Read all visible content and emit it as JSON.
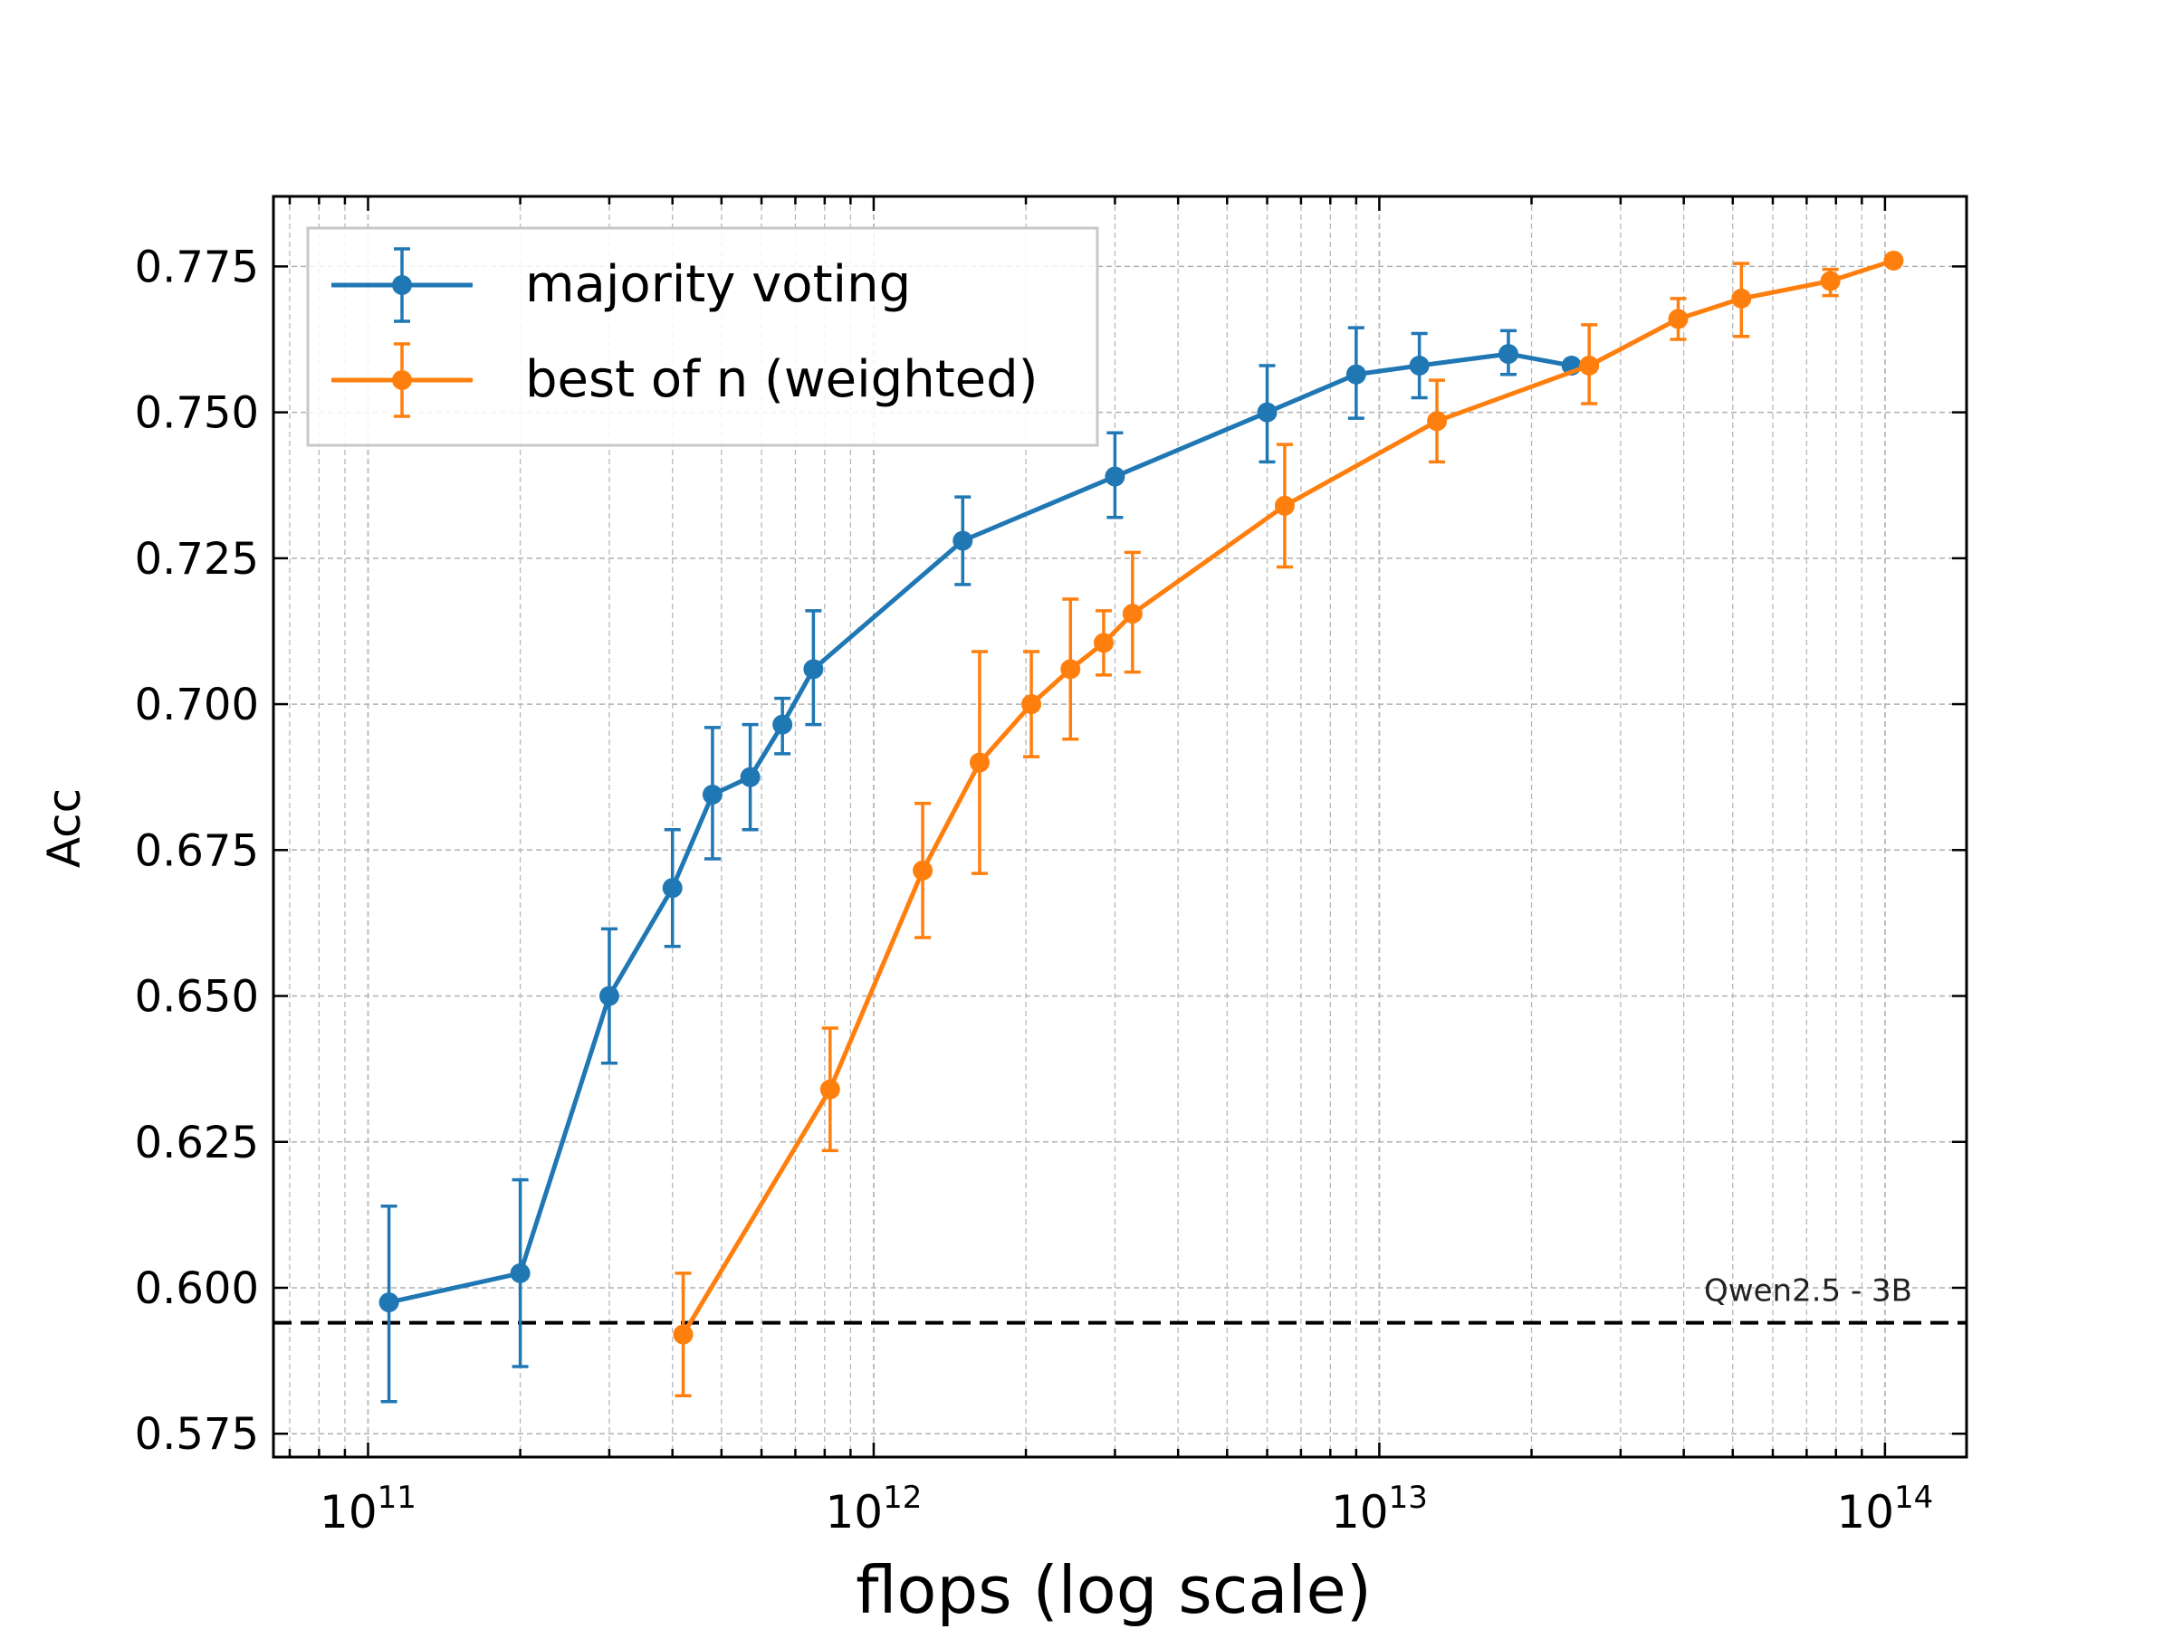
{
  "chart_data": {
    "type": "line",
    "title": "",
    "xlabel": "flops (log scale)",
    "ylabel": "Acc",
    "xscale": "log",
    "xlim": [
      65000000000.0,
      145000000000000.0
    ],
    "ylim": [
      0.571,
      0.787
    ],
    "x_ticks": [
      {
        "value": 100000000000.0,
        "base": "10",
        "exp": "11"
      },
      {
        "value": 1000000000000.0,
        "base": "10",
        "exp": "12"
      },
      {
        "value": 10000000000000.0,
        "base": "10",
        "exp": "13"
      },
      {
        "value": 100000000000000.0,
        "base": "10",
        "exp": "14"
      }
    ],
    "y_ticks": [
      "0.575",
      "0.600",
      "0.625",
      "0.650",
      "0.675",
      "0.700",
      "0.725",
      "0.750",
      "0.775"
    ],
    "grid": true,
    "legend_position": "top-left",
    "series": [
      {
        "name": "majority voting",
        "color": "#1f77b4",
        "points": [
          {
            "x": 110000000000.0,
            "y": 0.5975,
            "err_lo": 0.5805,
            "err_hi": 0.614
          },
          {
            "x": 200000000000.0,
            "y": 0.6025,
            "err_lo": 0.5865,
            "err_hi": 0.6185
          },
          {
            "x": 300000000000.0,
            "y": 0.65,
            "err_lo": 0.6385,
            "err_hi": 0.6615
          },
          {
            "x": 400000000000.0,
            "y": 0.6685,
            "err_lo": 0.6585,
            "err_hi": 0.6785
          },
          {
            "x": 480000000000.0,
            "y": 0.6845,
            "err_lo": 0.6735,
            "err_hi": 0.696
          },
          {
            "x": 570000000000.0,
            "y": 0.6875,
            "err_lo": 0.6785,
            "err_hi": 0.6965
          },
          {
            "x": 660000000000.0,
            "y": 0.6965,
            "err_lo": 0.6915,
            "err_hi": 0.701
          },
          {
            "x": 760000000000.0,
            "y": 0.706,
            "err_lo": 0.6965,
            "err_hi": 0.716
          },
          {
            "x": 1500000000000.0,
            "y": 0.728,
            "err_lo": 0.7205,
            "err_hi": 0.7355
          },
          {
            "x": 3000000000000.0,
            "y": 0.739,
            "err_lo": 0.732,
            "err_hi": 0.7465
          },
          {
            "x": 6000000000000.0,
            "y": 0.75,
            "err_lo": 0.7415,
            "err_hi": 0.758
          },
          {
            "x": 9000000000000.0,
            "y": 0.7565,
            "err_lo": 0.749,
            "err_hi": 0.7645
          },
          {
            "x": 12000000000000.0,
            "y": 0.758,
            "err_lo": 0.7525,
            "err_hi": 0.7635
          },
          {
            "x": 18000000000000.0,
            "y": 0.76,
            "err_lo": 0.7565,
            "err_hi": 0.764
          },
          {
            "x": 24000000000000.0,
            "y": 0.758,
            "err_lo": 0.758,
            "err_hi": 0.758
          }
        ]
      },
      {
        "name": "best of n (weighted)",
        "color": "#ff7f0e",
        "points": [
          {
            "x": 420000000000.0,
            "y": 0.592,
            "err_lo": 0.5815,
            "err_hi": 0.6025
          },
          {
            "x": 820000000000.0,
            "y": 0.634,
            "err_lo": 0.6235,
            "err_hi": 0.6445
          },
          {
            "x": 1250000000000.0,
            "y": 0.6715,
            "err_lo": 0.66,
            "err_hi": 0.683
          },
          {
            "x": 1620000000000.0,
            "y": 0.69,
            "err_lo": 0.671,
            "err_hi": 0.709
          },
          {
            "x": 2050000000000.0,
            "y": 0.7,
            "err_lo": 0.691,
            "err_hi": 0.709
          },
          {
            "x": 2450000000000.0,
            "y": 0.706,
            "err_lo": 0.694,
            "err_hi": 0.718
          },
          {
            "x": 2850000000000.0,
            "y": 0.7105,
            "err_lo": 0.705,
            "err_hi": 0.716
          },
          {
            "x": 3250000000000.0,
            "y": 0.7155,
            "err_lo": 0.7055,
            "err_hi": 0.726
          },
          {
            "x": 6500000000000.0,
            "y": 0.734,
            "err_lo": 0.7235,
            "err_hi": 0.7445
          },
          {
            "x": 13000000000000.0,
            "y": 0.7485,
            "err_lo": 0.7415,
            "err_hi": 0.7555
          },
          {
            "x": 26000000000000.0,
            "y": 0.758,
            "err_lo": 0.7515,
            "err_hi": 0.765
          },
          {
            "x": 39000000000000.0,
            "y": 0.766,
            "err_lo": 0.7625,
            "err_hi": 0.7695
          },
          {
            "x": 52000000000000.0,
            "y": 0.7695,
            "err_lo": 0.763,
            "err_hi": 0.7755
          },
          {
            "x": 78000000000000.0,
            "y": 0.7725,
            "err_lo": 0.77,
            "err_hi": 0.7745
          },
          {
            "x": 104000000000000.0,
            "y": 0.776,
            "err_lo": 0.776,
            "err_hi": 0.776
          }
        ]
      }
    ],
    "baseline": {
      "label": "Qwen2.5 - 3B",
      "y": 0.594,
      "color": "#000000",
      "style": "dashed"
    }
  }
}
